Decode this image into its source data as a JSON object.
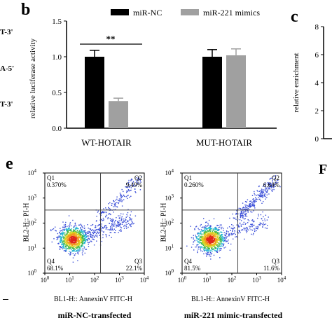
{
  "panels": {
    "b_letter": "b",
    "c_letter": "c",
    "e_letter": "e",
    "f_letter": "F"
  },
  "partial_sequences": [
    "T-3'",
    "A-5'",
    "T-3'"
  ],
  "chart_b": {
    "type": "bar",
    "title": "",
    "ylabel": "relative luciferase activity",
    "ylim": [
      0.0,
      1.5
    ],
    "yticks": [
      "0.0",
      "0.5",
      "1.0",
      "1.5"
    ],
    "categories": [
      "WT-HOTAIR",
      "MUT-HOTAIR"
    ],
    "legend_position": "top",
    "series": [
      {
        "name": "miR-NC",
        "values": [
          1.0,
          1.0
        ],
        "errors": [
          0.09,
          0.1
        ],
        "color": "#000000"
      },
      {
        "name": "miR-221 mimics",
        "values": [
          0.38,
          1.02
        ],
        "errors": [
          0.04,
          0.09
        ],
        "color": "#a0a0a0"
      }
    ],
    "significance": "**"
  },
  "chart_c": {
    "type": "bar",
    "ylabel": "relative enrichment",
    "yticks": [
      "0",
      "2",
      "4",
      "6",
      "8"
    ],
    "ylim": [
      0,
      8
    ]
  },
  "chart_data": [
    {
      "type": "scatter",
      "panel": "e-left",
      "xlabel": "BL1-H:: AnnexinV FITC-H",
      "ylabel": "BL2-H:: PI-H",
      "xticks": [
        "10^0",
        "10^1",
        "10^2",
        "10^3",
        "10^4"
      ],
      "yticks": [
        "10^0",
        "10^1",
        "10^2",
        "10^3",
        "10^4"
      ],
      "quadrants": {
        "Q1": "0.370%",
        "Q2": "9.49%",
        "Q3": "22.1%",
        "Q4": "68.1%"
      },
      "caption": "miR-NC-transfected"
    },
    {
      "type": "scatter",
      "panel": "e-right",
      "xlabel": "BL1-H:: AnnexinV FITC-H",
      "ylabel": "BL2-H:: PI-H",
      "xticks": [
        "10^0",
        "10^1",
        "10^2",
        "10^3",
        "10^4"
      ],
      "yticks": [
        "10^0",
        "10^1",
        "10^2",
        "10^3",
        "10^4"
      ],
      "quadrants": {
        "Q1": "0.260%",
        "Q2": "6.64%",
        "Q3": "11.6%",
        "Q4": "81.5%"
      },
      "caption": "miR-221 mimic-transfected"
    }
  ]
}
